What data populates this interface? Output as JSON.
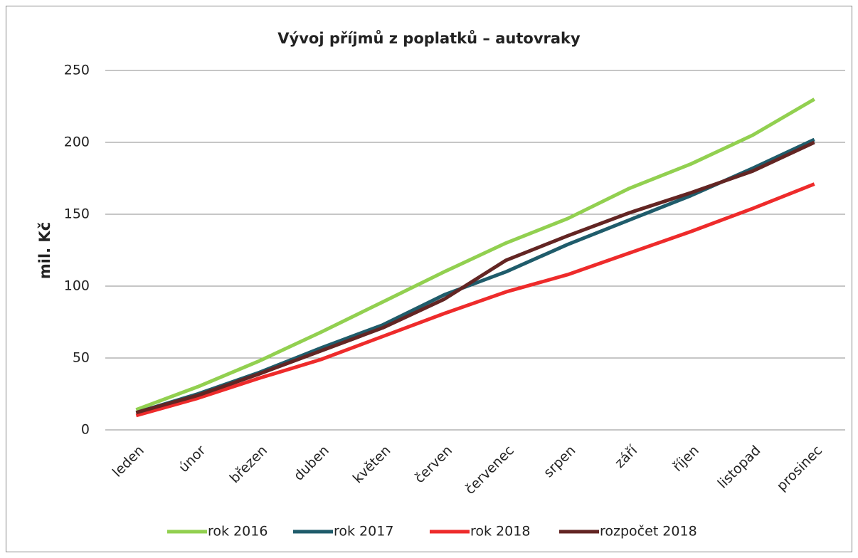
{
  "chart_data": {
    "type": "line",
    "title": "Vývoj příjmů z poplatků – autovraky",
    "ylabel": "mil. Kč",
    "categories": [
      "leden",
      "únor",
      "březen",
      "duben",
      "květen",
      "červen",
      "červenec",
      "srpen",
      "září",
      "říjen",
      "listopad",
      "prosinec"
    ],
    "series": [
      {
        "name": "rok 2016",
        "color": "#92d050",
        "values": [
          14,
          30,
          48,
          68,
          89,
          110,
          130,
          147,
          168,
          185,
          205,
          230
        ]
      },
      {
        "name": "rok 2017",
        "color": "#1f5c6b",
        "values": [
          12,
          25,
          40,
          57,
          73,
          94,
          110,
          129,
          146,
          163,
          182,
          202
        ]
      },
      {
        "name": "rok 2018",
        "color": "#ee2b2b",
        "values": [
          10,
          22,
          36,
          49,
          65,
          81,
          96,
          108,
          123,
          138,
          154,
          171
        ]
      },
      {
        "name": "rozpočet 2018",
        "color": "#632523",
        "values": [
          12,
          24,
          39,
          55,
          71,
          91,
          118,
          135,
          151,
          165,
          180,
          200
        ]
      }
    ],
    "ylim": [
      0,
      250
    ],
    "yticks": [
      0,
      50,
      100,
      150,
      200,
      250
    ],
    "grid": true,
    "legend": "bottom"
  }
}
